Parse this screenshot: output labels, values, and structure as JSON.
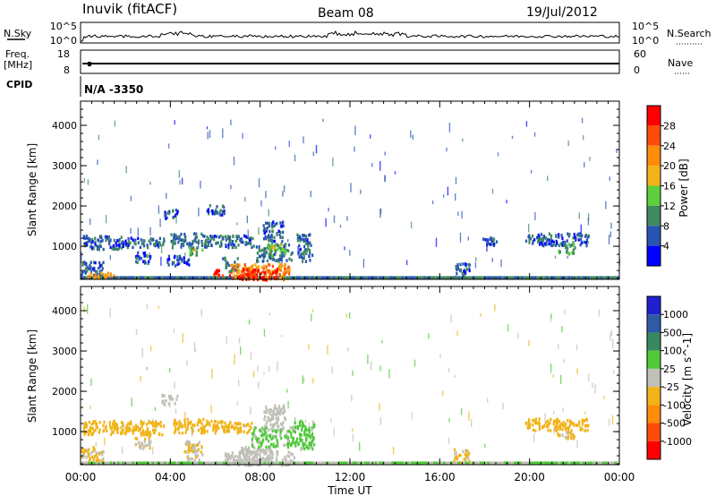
{
  "header": {
    "station": "Inuvik (fitACF)",
    "beam": "Beam 08",
    "date": "19/Jul/2012"
  },
  "top_panels": {
    "nsky_label": "N.Sky",
    "nsky_ticks": [
      "10^5",
      "10^0"
    ],
    "nsearch_label": "N.Search",
    "nsearch_ticks": [
      "10^5",
      "10^0"
    ],
    "freq_label_1": "Freq.",
    "freq_label_2": "[MHz]",
    "freq_ticks": [
      "18",
      "8"
    ],
    "nave_label": "Nave",
    "nave_ticks": [
      "60",
      "0"
    ],
    "cpid_label": "CPID",
    "cpid_value": "N/A -3350"
  },
  "chart_data": [
    {
      "type": "heatmap",
      "name": "power",
      "ylabel": "Slant Range [km]",
      "ylim": [
        180,
        4600
      ],
      "yticks": [
        1000,
        2000,
        3000,
        4000
      ],
      "xlim": [
        0,
        24
      ],
      "colorbar": {
        "label": "Power [dB]",
        "range": [
          0,
          32
        ],
        "ticks": [
          4,
          8,
          12,
          16,
          20,
          24,
          28
        ],
        "colors": [
          "#0000ff",
          "#2855b4",
          "#3f8a5e",
          "#5dcf3c",
          "#f1b318",
          "#ff8c0a",
          "#ff4a0a",
          "#ff0000"
        ]
      },
      "patches": [
        {
          "t0": 0.1,
          "t1": 1.8,
          "r0": 950,
          "r1": 1300,
          "v": 6
        },
        {
          "t0": 0.0,
          "t1": 1.0,
          "r0": 300,
          "r1": 650,
          "v": 6
        },
        {
          "t0": 0.3,
          "t1": 1.5,
          "r0": 250,
          "r1": 400,
          "v": 20
        },
        {
          "t0": 1.8,
          "t1": 3.7,
          "r0": 1000,
          "r1": 1250,
          "v": 7
        },
        {
          "t0": 2.4,
          "t1": 3.1,
          "r0": 600,
          "r1": 900,
          "v": 5
        },
        {
          "t0": 3.7,
          "t1": 4.3,
          "r0": 1700,
          "r1": 1950,
          "v": 6
        },
        {
          "t0": 4.0,
          "t1": 5.6,
          "r0": 1000,
          "r1": 1350,
          "v": 8
        },
        {
          "t0": 4.8,
          "t1": 5.4,
          "r0": 800,
          "r1": 1000,
          "v": 14
        },
        {
          "t0": 3.8,
          "t1": 4.8,
          "r0": 550,
          "r1": 800,
          "v": 5
        },
        {
          "t0": 5.6,
          "t1": 6.4,
          "r0": 1800,
          "r1": 2050,
          "v": 6
        },
        {
          "t0": 5.6,
          "t1": 7.7,
          "r0": 1000,
          "r1": 1300,
          "v": 7
        },
        {
          "t0": 5.9,
          "t1": 6.7,
          "r0": 300,
          "r1": 450,
          "v": 28
        },
        {
          "t0": 6.3,
          "t1": 7.0,
          "r0": 400,
          "r1": 750,
          "v": 9
        },
        {
          "t0": 6.6,
          "t1": 9.3,
          "r0": 200,
          "r1": 600,
          "v": 22
        },
        {
          "t0": 7.0,
          "t1": 8.8,
          "r0": 200,
          "r1": 480,
          "v": 29
        },
        {
          "t0": 7.8,
          "t1": 9.4,
          "r0": 650,
          "r1": 1100,
          "v": 8
        },
        {
          "t0": 8.1,
          "t1": 9.0,
          "r0": 1150,
          "r1": 1650,
          "v": 6
        },
        {
          "t0": 8.3,
          "t1": 9.1,
          "r0": 800,
          "r1": 1100,
          "v": 15
        },
        {
          "t0": 9.6,
          "t1": 10.3,
          "r0": 650,
          "r1": 1350,
          "v": 7
        },
        {
          "t0": 16.6,
          "t1": 17.3,
          "r0": 250,
          "r1": 600,
          "v": 6
        },
        {
          "t0": 17.9,
          "t1": 18.6,
          "r0": 1050,
          "r1": 1250,
          "v": 5
        },
        {
          "t0": 19.8,
          "t1": 22.6,
          "r0": 1050,
          "r1": 1350,
          "v": 6
        },
        {
          "t0": 21.2,
          "t1": 22.0,
          "r0": 850,
          "r1": 1100,
          "v": 12
        }
      ]
    },
    {
      "type": "heatmap",
      "name": "velocity",
      "ylabel": "Slant Range [km]",
      "ylim": [
        180,
        4600
      ],
      "yticks": [
        1000,
        2000,
        3000,
        4000
      ],
      "xlim": [
        0,
        24
      ],
      "xticks": [
        "00:00",
        "04:00",
        "08:00",
        "12:00",
        "16:00",
        "20:00",
        "00:00"
      ],
      "xlabel": "Time UT",
      "colorbar": {
        "label": "Velocity [m s^-1]",
        "range": [
          -1500,
          1500
        ],
        "ticks": [
          "1000",
          "500",
          "100",
          "25",
          "-25",
          "-100",
          "-500",
          "-1000"
        ],
        "colors": [
          "#2020d0",
          "#2f5aa6",
          "#3a8862",
          "#4fc93a",
          "#c0c0b8",
          "#f1b318",
          "#ff8c0a",
          "#ff4a0a",
          "#ff0000"
        ]
      },
      "patches": [
        {
          "t0": 0.1,
          "t1": 1.8,
          "r0": 950,
          "r1": 1300,
          "v": -300
        },
        {
          "t0": 0.0,
          "t1": 1.0,
          "r0": 300,
          "r1": 650,
          "v": -200
        },
        {
          "t0": 1.8,
          "t1": 3.7,
          "r0": 950,
          "r1": 1300,
          "v": -300
        },
        {
          "t0": 2.4,
          "t1": 3.1,
          "r0": 600,
          "r1": 900,
          "v": -150
        },
        {
          "t0": 3.6,
          "t1": 4.3,
          "r0": 1700,
          "r1": 1950,
          "v": 0
        },
        {
          "t0": 4.0,
          "t1": 5.6,
          "r0": 1000,
          "r1": 1350,
          "v": -300
        },
        {
          "t0": 4.6,
          "t1": 5.4,
          "r0": 300,
          "r1": 800,
          "v": -150
        },
        {
          "t0": 5.6,
          "t1": 7.6,
          "r0": 1000,
          "r1": 1300,
          "v": -300
        },
        {
          "t0": 6.4,
          "t1": 9.5,
          "r0": 200,
          "r1": 550,
          "v": 60
        },
        {
          "t0": 7.0,
          "t1": 8.5,
          "r0": 250,
          "r1": 650,
          "v": 0
        },
        {
          "t0": 7.6,
          "t1": 9.5,
          "r0": 650,
          "r1": 1150,
          "v": 200
        },
        {
          "t0": 8.1,
          "t1": 9.1,
          "r0": 1150,
          "r1": 1700,
          "v": 0
        },
        {
          "t0": 9.5,
          "t1": 10.4,
          "r0": 600,
          "r1": 1300,
          "v": 250
        },
        {
          "t0": 16.6,
          "t1": 17.3,
          "r0": 250,
          "r1": 600,
          "v": -200
        },
        {
          "t0": 19.8,
          "t1": 22.6,
          "r0": 1050,
          "r1": 1350,
          "v": -300
        },
        {
          "t0": 21.2,
          "t1": 22.0,
          "r0": 850,
          "r1": 1100,
          "v": -200
        }
      ]
    }
  ]
}
